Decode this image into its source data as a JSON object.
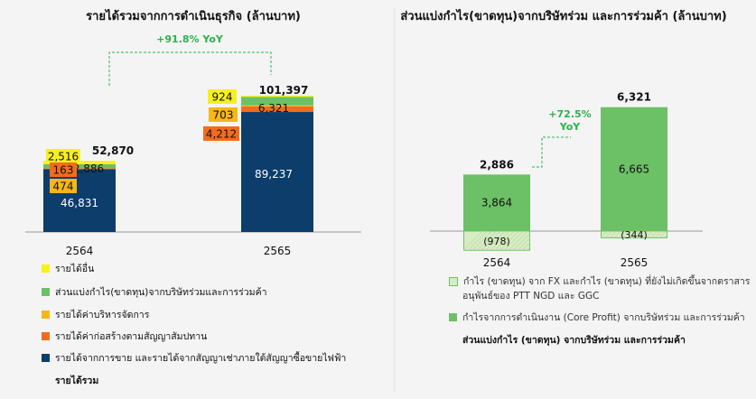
{
  "chart_data": [
    {
      "type": "bar",
      "title": "รายได้รวมจากการดำเนินธุรกิจ (ล้านบาท)",
      "categories": [
        "2564",
        "2565"
      ],
      "series": [
        {
          "name": "รายได้จากการขาย และรายได้จากสัญญาเช่าภายใต้สัญญาซื้อขายไฟฟ้า",
          "color": "#0d3d6b",
          "values": [
            46831,
            89237
          ]
        },
        {
          "name": "รายได้ค่าก่อสร้างตามสัญญาสัมปทาน",
          "color": "#f26c1b",
          "values": [
            474,
            4212
          ]
        },
        {
          "name": "รายได้ค่าบริหารจัดการ",
          "color": "#f8b617",
          "values": [
            163,
            703
          ]
        },
        {
          "name": "ส่วนแบ่งกำไร(ขาดทุน)จากบริษัทร่วมและการร่วมค้า",
          "color": "#6cc065",
          "values": [
            2886,
            6321
          ]
        },
        {
          "name": "รายได้อื่น",
          "color": "#f7f01f",
          "values": [
            2516,
            924
          ]
        }
      ],
      "totals": [
        "52,870",
        "101,397"
      ],
      "total_label": "รายได้รวม",
      "labels": {
        "y2564": {
          "sales": "46,831",
          "construction": "474",
          "mgmt": "163",
          "share": "2,886",
          "other": "2,516"
        },
        "y2565": {
          "sales": "89,237",
          "construction": "4,212",
          "mgmt": "703",
          "share": "6,321",
          "other": "924"
        }
      },
      "growth": "+91.8% YoY",
      "ylim": [
        0,
        110000
      ]
    },
    {
      "type": "bar",
      "title": "ส่วนแบ่งกำไร(ขาดทุน)จากบริษัทร่วม และการร่วมค้า (ล้านบาท)",
      "categories": [
        "2564",
        "2565"
      ],
      "series": [
        {
          "name": "กำไรจากการดำเนินงาน (Core Profit) จากบริษัทร่วม และการร่วมค้า",
          "color": "#6cc065",
          "values": [
            3864,
            6665
          ]
        },
        {
          "name": "กำไร (ขาดทุน) จาก FX และกำไร (ขาดทุน) ที่ยังไม่เกิดขึ้นจากตราสารอนุพันธ์ของ PTT NGD และ GGC",
          "color": "#d8ecc4",
          "values": [
            -978,
            -344
          ]
        }
      ],
      "totals": [
        "2,886",
        "6,321"
      ],
      "total_label": "ส่วนแบ่งกำไร (ขาดทุน) จากบริษัทร่วม และการร่วมค้า",
      "labels": {
        "core": [
          "3,864",
          "6,665"
        ],
        "fx": [
          "(978)",
          "(344)"
        ]
      },
      "growth_lines": [
        "+72.5%",
        "YoY"
      ],
      "ylim": [
        -1500,
        7500
      ]
    }
  ],
  "legend_left": [
    {
      "label": "รายได้อื่น",
      "color": "#f7f01f"
    },
    {
      "label": "ส่วนแบ่งกำไร(ขาดทุน)จากบริษัทร่วมและการร่วมค้า",
      "color": "#6cc065"
    },
    {
      "label": "รายได้ค่าบริหารจัดการ",
      "color": "#f8b617"
    },
    {
      "label": "รายได้ค่าก่อสร้างตามสัญญาสัมปทาน",
      "color": "#f26c1b"
    },
    {
      "label": "รายได้จากการขาย และรายได้จากสัญญาเช่าภายใต้สัญญาซื้อขายไฟฟ้า",
      "color": "#0d3d6b"
    }
  ],
  "legend_right": [
    {
      "lines": [
        "กำไร (ขาดทุน) จาก FX และกำไร (ขาดทุน) ที่ยังไม่เกิดขึ้นจากตราสาร",
        "อนุพันธ์ของ PTT NGD และ GGC"
      ],
      "color": "#d8ecc4"
    },
    {
      "lines": [
        "กำไรจากการดำเนินงาน (Core Profit) จากบริษัทร่วม และการร่วมค้า"
      ],
      "color": "#6cc065"
    }
  ],
  "growth_color": "#2bb24c"
}
